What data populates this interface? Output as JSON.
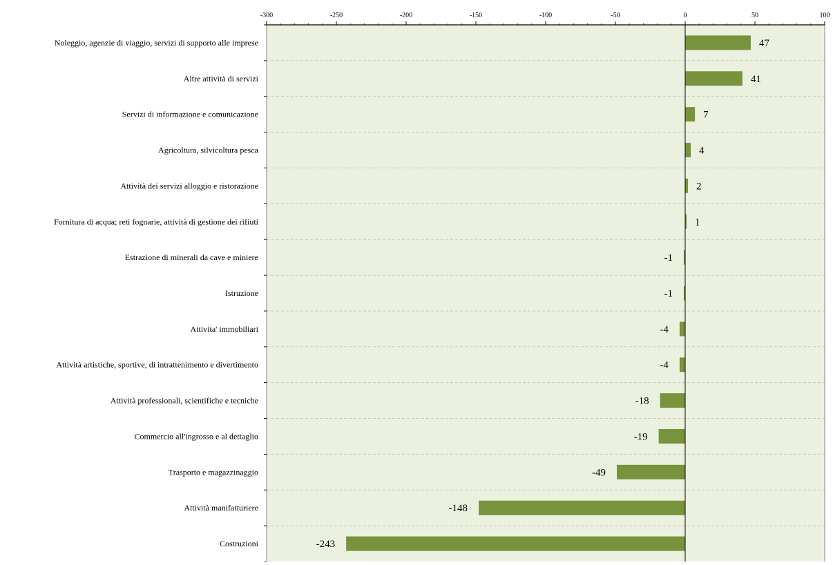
{
  "chart_data": {
    "type": "bar",
    "orientation": "horizontal",
    "title": "",
    "xlabel": "",
    "ylabel": "",
    "xlim": [
      -300,
      100
    ],
    "x_ticks": [
      -300,
      -250,
      -200,
      -150,
      -100,
      -50,
      0,
      50,
      100
    ],
    "x_tick_labels": [
      "-300",
      "-250",
      "-200",
      "-150",
      "-100",
      "-50",
      "0",
      "50",
      "100"
    ],
    "x_axis_position": "top",
    "grid": true,
    "legend": "none",
    "categories": [
      "Noleggio, agenzie di viaggio, servizi di supporto alle imprese",
      "Altre attività di servizi",
      "Servizi di informazione e comunicazione",
      "Agricoltura, silvicoltura pesca",
      "Attività dei servizi alloggio e ristorazione",
      "Fornitura di acqua; reti fognarie, attività di gestione dei rifiuti",
      "Estrazione di minerali da cave e miniere",
      "Istruzione",
      "Attivita' immobiliari",
      "Attività artistiche, sportive, di intrattenimento e divertimento",
      "Attività professionali, scientifiche e tecniche",
      "Commercio all'ingrosso e al dettaglio",
      "Trasporto e magazzinaggio",
      "Attività manifatturiere",
      "Costruzioni"
    ],
    "values": [
      47,
      41,
      7,
      4,
      2,
      1,
      -1,
      -1,
      -4,
      -4,
      -18,
      -19,
      -49,
      -148,
      -243
    ],
    "value_labels": [
      "47",
      "41",
      "7",
      "4",
      "2",
      "1",
      "-1",
      "-1",
      "-4",
      "-4",
      "-18",
      "-19",
      "-49",
      "-148",
      "-243"
    ],
    "colors": {
      "bar": "#77933c",
      "plot_background": "#ebf1de",
      "grid": "#c4c9b8",
      "axis": "#000000"
    }
  }
}
